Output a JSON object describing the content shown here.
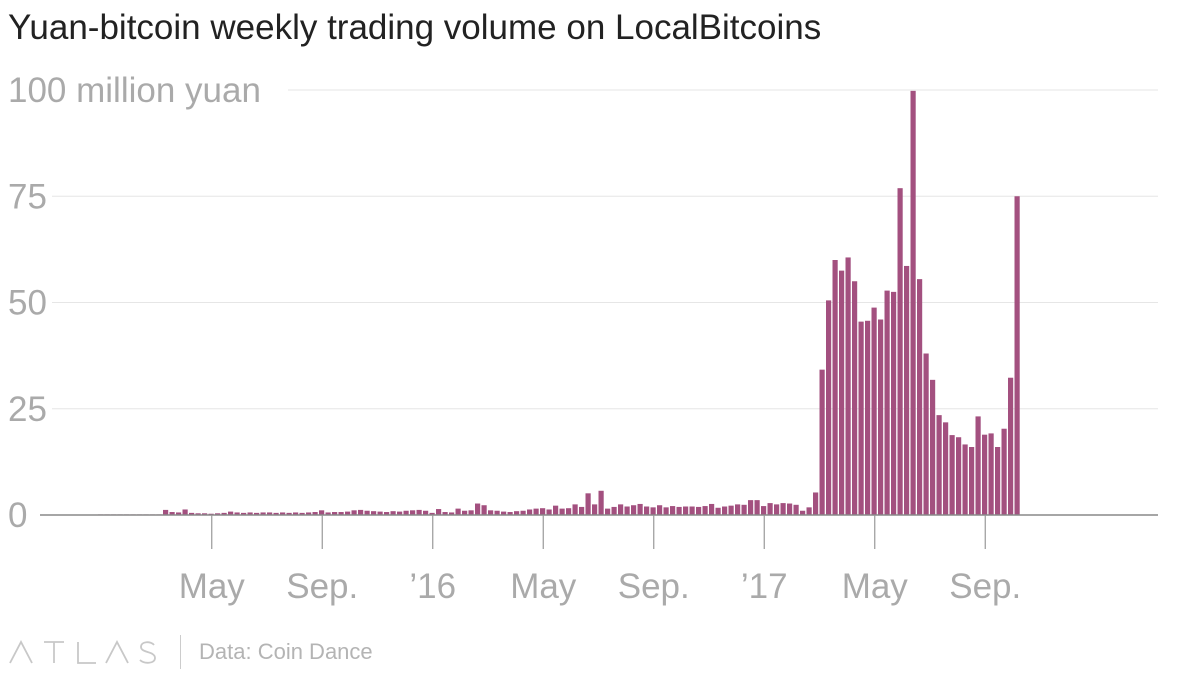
{
  "title": "Yuan-bitcoin weekly trading volume on LocalBitcoins",
  "footer": {
    "logo_text": "ATLAS",
    "source": "Data: Coin Dance"
  },
  "colors": {
    "bar": "#a3507f",
    "grid": "#e6e6e6",
    "axis_text": "#aaaaaa",
    "baseline": "#888888"
  },
  "chart_data": {
    "type": "bar",
    "title": "Yuan-bitcoin weekly trading volume on LocalBitcoins",
    "xlabel": "",
    "ylabel": "100 million yuan",
    "ylim": [
      0,
      100
    ],
    "yticks": [
      {
        "value": 0,
        "label": "0"
      },
      {
        "value": 25,
        "label": "25"
      },
      {
        "value": 50,
        "label": "50"
      },
      {
        "value": 75,
        "label": "75"
      },
      {
        "value": 100,
        "label": "100 million yuan"
      }
    ],
    "xticks": [
      {
        "week": 17.5,
        "label": "May"
      },
      {
        "week": 34.5,
        "label": "Sep."
      },
      {
        "week": 51.5,
        "label": "’16"
      },
      {
        "week": 68.5,
        "label": "May"
      },
      {
        "week": 85.5,
        "label": "Sep."
      },
      {
        "week": 102.5,
        "label": "’17"
      },
      {
        "week": 119.5,
        "label": "May"
      },
      {
        "week": 136.5,
        "label": "Sep."
      }
    ],
    "values": [
      0.1,
      0.1,
      0.1,
      0.1,
      0.1,
      0.1,
      0.1,
      0.1,
      0.1,
      0.1,
      1.2,
      0.7,
      0.6,
      1.3,
      0.5,
      0.4,
      0.4,
      0.3,
      0.4,
      0.5,
      0.8,
      0.6,
      0.5,
      0.6,
      0.5,
      0.6,
      0.6,
      0.5,
      0.6,
      0.5,
      0.6,
      0.5,
      0.6,
      0.7,
      1.1,
      0.6,
      0.7,
      0.7,
      0.8,
      1.1,
      1.2,
      1.0,
      0.9,
      0.8,
      0.7,
      0.9,
      0.8,
      1.0,
      1.1,
      1.2,
      1.0,
      0.5,
      1.4,
      0.7,
      0.6,
      1.5,
      1.0,
      1.1,
      2.7,
      2.3,
      1.1,
      1.0,
      0.8,
      0.7,
      0.9,
      1.0,
      1.3,
      1.5,
      1.6,
      1.3,
      2.2,
      1.5,
      1.6,
      2.5,
      1.9,
      5.1,
      2.5,
      5.7,
      1.5,
      1.9,
      2.5,
      2.0,
      2.3,
      2.6,
      2.0,
      1.8,
      2.3,
      1.8,
      2.1,
      1.9,
      2.0,
      2.0,
      1.9,
      2.1,
      2.6,
      1.7,
      2.0,
      2.2,
      2.5,
      2.4,
      3.5,
      3.5,
      2.1,
      2.8,
      2.5,
      2.8,
      2.7,
      2.4,
      1.0,
      1.8,
      5.3,
      34.2,
      50.5,
      60.0,
      57.5,
      60.6,
      55.0,
      45.5,
      45.7,
      48.8,
      46.0,
      52.8,
      52.5,
      76.9,
      58.6,
      99.8,
      55.5,
      38.0,
      31.8,
      23.5,
      21.8,
      18.8,
      18.3,
      16.6,
      16.0,
      23.2,
      18.9,
      19.2,
      16.0,
      20.3,
      32.3,
      75.0
    ]
  }
}
